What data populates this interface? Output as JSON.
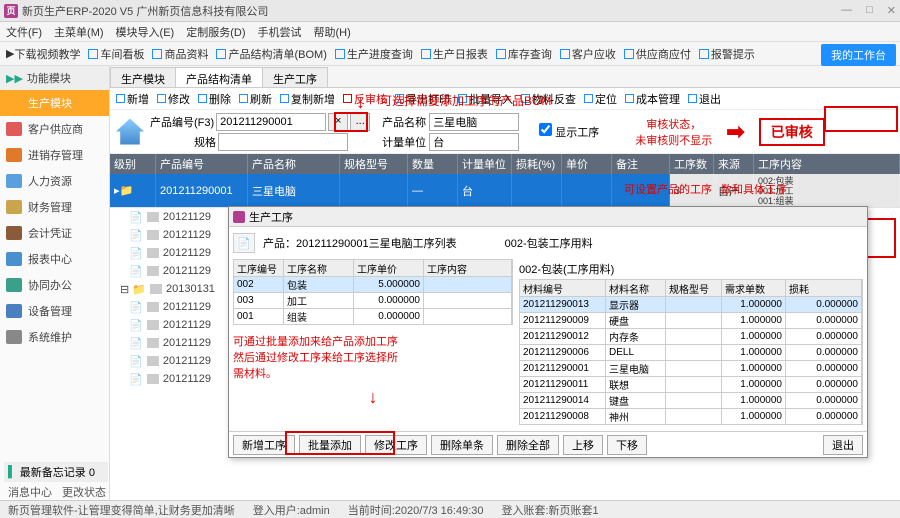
{
  "window": {
    "title": "新页生产ERP-2020 V5 广州新页信息科技有限公司"
  },
  "menu": [
    "文件(F)",
    "主菜单(M)",
    "模块导入(E)",
    "定制服务(D)",
    "手机尝试",
    "帮助(H)"
  ],
  "toolbar": {
    "video": "下载视频教学",
    "items": [
      "车间看板",
      "商品资料",
      "产品结构清单(BOM)",
      "生产进度查询",
      "生产日报表",
      "库存查询",
      "客户应收",
      "供应商应付",
      "报警提示"
    ],
    "mybench": "我的工作台"
  },
  "sidebar": {
    "head": "功能模块",
    "items": [
      {
        "label": "生产模块",
        "color": "#ffa726",
        "active": true
      },
      {
        "label": "客户供应商",
        "color": "#e05a5a"
      },
      {
        "label": "进销存管理",
        "color": "#e07a2a"
      },
      {
        "label": "人力资源",
        "color": "#5aa0e0"
      },
      {
        "label": "财务管理",
        "color": "#c9a54d"
      },
      {
        "label": "会计凭证",
        "color": "#8a5a3a"
      },
      {
        "label": "报表中心",
        "color": "#4a90d0"
      },
      {
        "label": "协同办公",
        "color": "#3aa088"
      },
      {
        "label": "设备管理",
        "color": "#4a80c0"
      },
      {
        "label": "系统维护",
        "color": "#888"
      }
    ],
    "memo": "最新备忘记录 0"
  },
  "tabs": [
    "生产模块",
    "产品结构清单",
    "生产工序"
  ],
  "ops": [
    "新增",
    "修改",
    "删除",
    "刷新",
    "复制新增",
    "反审核",
    "导出打印",
    "批量导入",
    "物料反查",
    "定位",
    "成本管理",
    "退出"
  ],
  "search": {
    "codeLabel": "产品编号(F3)",
    "code": "201211290001",
    "nameLabel": "产品名称",
    "name": "三星电脑",
    "specLabel": "规格",
    "unitLabel": "计量单位",
    "unit": "台",
    "showProc": "显示工序"
  },
  "annot": {
    "topRed": "可选择需要添加工序的产品BOM",
    "audit1": "审核状态，",
    "audit2": "未审核则不显示",
    "stamp": "已审核",
    "rowRed1": "可设置产品的工序",
    "rowRed2": "数和具体工序"
  },
  "grid": {
    "cols": [
      "级别",
      "产品编号",
      "产品名称",
      "规格型号",
      "数量",
      "计量单位",
      "损耗(%)",
      "单价",
      "备注",
      "工序数",
      "来源",
      "工序内容"
    ],
    "mainRow": {
      "code": "201211290001",
      "name": "三星电脑",
      "qty": "—",
      "unit": "台",
      "procCount": "3",
      "source": "自产",
      "procContent": "002:包装\n003:加工\n001:组装"
    },
    "children": [
      "20121129",
      "20121129",
      "20121129",
      "20121129",
      "20130131",
      "20121129",
      "20121129",
      "20121129",
      "20121129",
      "20121129"
    ]
  },
  "dialog": {
    "title": "生产工序",
    "header": "产品：201211290001三星电脑工序列表",
    "header2": "002-包装工序用料",
    "left": {
      "cols": [
        "工序编号",
        "工序名称",
        "工序单价",
        "工序内容"
      ],
      "rows": [
        {
          "no": "002",
          "name": "包装",
          "price": "5.000000"
        },
        {
          "no": "003",
          "name": "加工",
          "price": "0.000000"
        },
        {
          "no": "001",
          "name": "组装",
          "price": "0.000000"
        }
      ]
    },
    "right": {
      "title": "002-包装(工序用料)",
      "cols": [
        "材料编号",
        "材料名称",
        "规格型号",
        "需求单数",
        "损耗"
      ],
      "rows": [
        {
          "code": "201211290013",
          "name": "显示器",
          "qty": "1.000000",
          "loss": "0.000000",
          "hl": true
        },
        {
          "code": "201211290009",
          "name": "硬盘",
          "qty": "1.000000",
          "loss": "0.000000"
        },
        {
          "code": "201211290012",
          "name": "内存条",
          "qty": "1.000000",
          "loss": "0.000000"
        },
        {
          "code": "201211290006",
          "name": "DELL",
          "qty": "1.000000",
          "loss": "0.000000"
        },
        {
          "code": "201211290001",
          "name": "三星电脑",
          "qty": "1.000000",
          "loss": "0.000000"
        },
        {
          "code": "201211290011",
          "name": "联想",
          "qty": "1.000000",
          "loss": "0.000000"
        },
        {
          "code": "201211290014",
          "name": "键盘",
          "qty": "1.000000",
          "loss": "0.000000"
        },
        {
          "code": "201211290008",
          "name": "神州",
          "qty": "1.000000",
          "loss": "0.000000"
        }
      ]
    },
    "redNote1": "可通过批量添加来给产品添加工序",
    "redNote2": "然后通过修改工序来给工序选择所",
    "redNote3": "需材料。",
    "buttons": [
      "新增工序",
      "批量添加",
      "修改工序",
      "删除单条",
      "删除全部",
      "上移",
      "下移"
    ],
    "exit": "退出"
  },
  "bottom": {
    "l": "消息中心",
    "r": "更改状态"
  },
  "status": {
    "a": "新页管理软件-让管理变得简单,让财务更加清晰",
    "b": "登入用户:admin",
    "c": "当前时间:2020/7/3 16:49:30",
    "d": "登入账套:新页账套1"
  }
}
